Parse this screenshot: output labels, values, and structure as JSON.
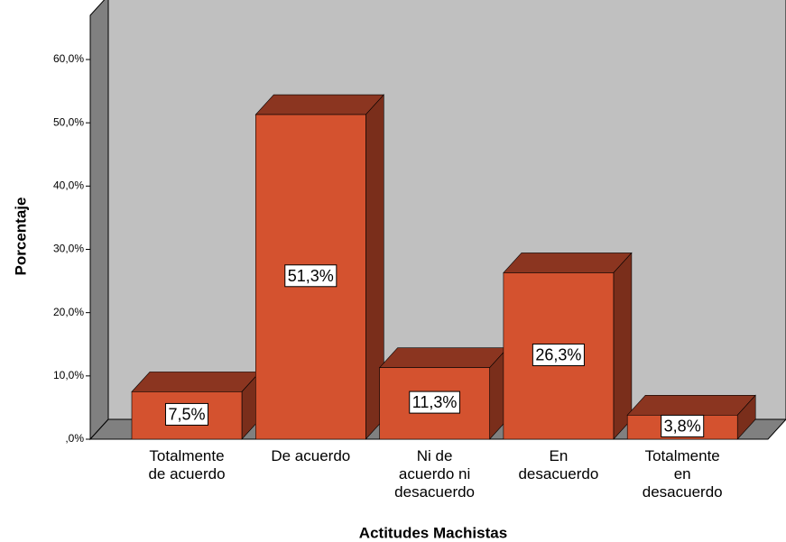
{
  "chart_data": {
    "type": "bar3d",
    "x_label": "Actitudes Machistas",
    "y_label": "Porcentaje",
    "categories": [
      "Totalmente de acuerdo",
      "De acuerdo",
      "Ni de acuerdo ni desacuerdo",
      "En desacuerdo",
      "Totalmente en desacuerdo"
    ],
    "values": [
      7.5,
      51.3,
      11.3,
      26.3,
      3.8
    ],
    "value_labels": [
      "7,5%",
      "51,3%",
      "11,3%",
      "26,3%",
      "3,8%"
    ],
    "color": "#d4522f",
    "ylim": [
      0,
      60
    ],
    "yticks": [
      {
        "value": 0,
        "label": ",0%"
      },
      {
        "value": 10,
        "label": "10,0%"
      },
      {
        "value": 20,
        "label": "20,0%"
      },
      {
        "value": 30,
        "label": "30,0%"
      },
      {
        "value": 40,
        "label": "40,0%"
      },
      {
        "value": 50,
        "label": "50,0%"
      },
      {
        "value": 60,
        "label": "60,0%"
      }
    ],
    "grid": false
  }
}
